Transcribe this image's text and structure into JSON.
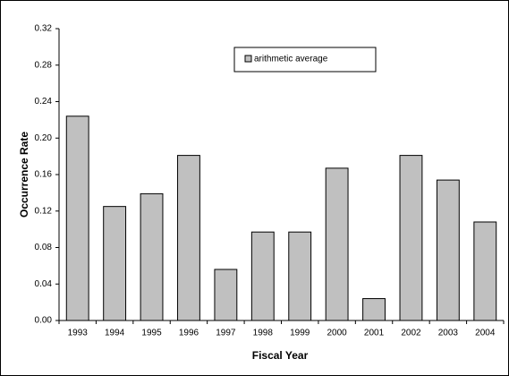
{
  "chart_data": {
    "type": "bar",
    "x_label": "Fiscal Year",
    "y_label": "Occurrence Rate",
    "categories": [
      "1993",
      "1994",
      "1995",
      "1996",
      "1997",
      "1998",
      "1999",
      "2000",
      "2001",
      "2002",
      "2003",
      "2004"
    ],
    "series": [
      {
        "name": "arithmetic average",
        "color": "#c0c0c0",
        "values": [
          0.224,
          0.125,
          0.139,
          0.181,
          0.056,
          0.097,
          0.097,
          0.167,
          0.024,
          0.181,
          0.154,
          0.108
        ]
      }
    ],
    "ylim": [
      0,
      0.32
    ],
    "yticks": [
      {
        "value": 0,
        "label": "0.00"
      },
      {
        "value": 0.04,
        "label": "0.04"
      },
      {
        "value": 0.08,
        "label": "0.08"
      },
      {
        "value": 0.12,
        "label": "0.12"
      },
      {
        "value": 0.16,
        "label": "0.16"
      },
      {
        "value": 0.2,
        "label": "0.20"
      },
      {
        "value": 0.24,
        "label": "0.24"
      },
      {
        "value": 0.28,
        "label": "0.28"
      },
      {
        "value": 0.32,
        "label": "0.32"
      }
    ],
    "grid": false
  }
}
